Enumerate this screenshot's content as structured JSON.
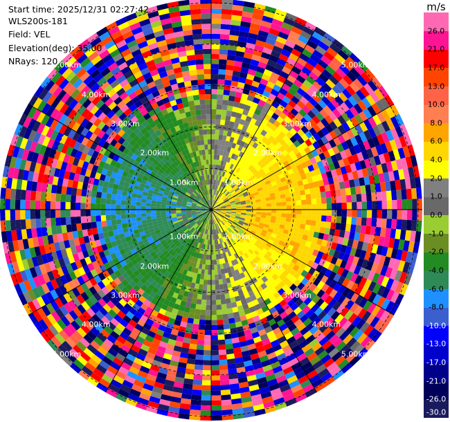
{
  "header": {
    "start_time": "Start time: 2025/12/31 02:27:42",
    "instrument": "WLS200s-181",
    "field": "Field: VEL",
    "elevation": "Elevation(deg): 35.00",
    "nrays": "NRays: 120"
  },
  "ring_labels": [
    "1.00km",
    "2.00km",
    "3.00km",
    "4.00km",
    "5.00km"
  ],
  "colorbar": {
    "unit": "m/s",
    "colors": [
      "#1a1a5e",
      "#00005a",
      "#00008b",
      "#0000cd",
      "#0000ff",
      "#3c5fcf",
      "#1e90ff",
      "#2e8b57",
      "#228b22",
      "#6b8e23",
      "#9acd32",
      "#696969",
      "#808080",
      "#ffff00",
      "#ffd700",
      "#ffa500",
      "#ff7f50",
      "#ff6347",
      "#ff4500",
      "#ff0000",
      "#ff1493",
      "#ff69b4"
    ],
    "ticks": [
      "-30.0",
      "-26.0",
      "-21.0",
      "-17.0",
      "-13.0",
      "-10.0",
      "-8.0",
      "-6.0",
      "-4.0",
      "-2.0",
      "-1.0",
      "0.0",
      "1.0",
      "2.0",
      "4.0",
      "6.0",
      "8.0",
      "10.0",
      "13.0",
      "17.0",
      "21.0",
      "26.0"
    ]
  },
  "chart_data": {
    "type": "heatmap",
    "projection": "polar PPI",
    "field": "VEL",
    "units": "m/s",
    "n_rays": 120,
    "elevation_deg": 35.0,
    "range_rings_km": [
      1,
      2,
      3,
      4,
      5
    ],
    "max_range_km": 5.1,
    "value_bounds": [
      -30,
      -26,
      -21,
      -17,
      -13,
      -10,
      -8,
      -6,
      -4,
      -2,
      -1,
      0,
      1,
      2,
      4,
      6,
      8,
      10,
      13,
      17,
      21,
      26,
      30
    ]
  }
}
